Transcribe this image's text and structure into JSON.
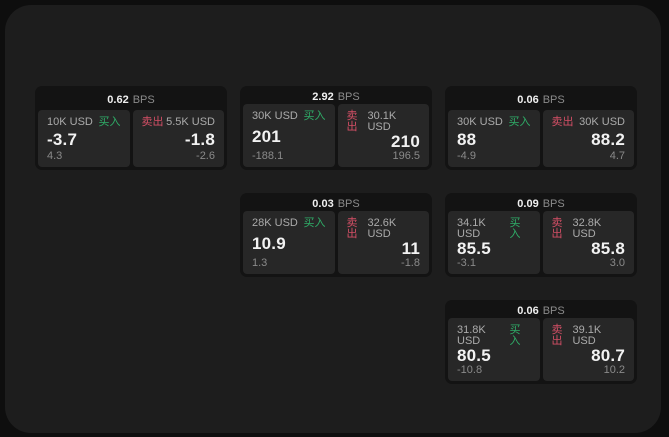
{
  "labels": {
    "bps_unit": "BPS",
    "buy": "买入",
    "sell": "卖出"
  },
  "colors": {
    "frame_bg": "#0e0e0e",
    "panel_bg": "#1d1d1d",
    "card_bg": "#131313",
    "tile_bg": "#272727",
    "buy_green": "#2fae68",
    "sell_red": "#d44f66",
    "value_white": "#f2f2f2",
    "label_gray": "#ababab",
    "muted_gray": "#8a8a8a"
  },
  "cards": [
    {
      "bps": "0.62",
      "buy": {
        "amount": "10K USD",
        "price": "-3.7",
        "delta": "4.3"
      },
      "sell": {
        "amount": "5.5K USD",
        "price": "-1.8",
        "delta": "-2.6"
      }
    },
    {
      "bps": "2.92",
      "buy": {
        "amount": "30K USD",
        "price": "201",
        "delta": "-188.1"
      },
      "sell": {
        "amount": "30.1K USD",
        "price": "210",
        "delta": "196.5"
      }
    },
    {
      "bps": "0.06",
      "buy": {
        "amount": "30K USD",
        "price": "88",
        "delta": "-4.9"
      },
      "sell": {
        "amount": "30K USD",
        "price": "88.2",
        "delta": "4.7"
      }
    },
    {
      "bps": "0.03",
      "buy": {
        "amount": "28K USD",
        "price": "10.9",
        "delta": "1.3"
      },
      "sell": {
        "amount": "32.6K USD",
        "price": "11",
        "delta": "-1.8"
      }
    },
    {
      "bps": "0.09",
      "buy": {
        "amount": "34.1K USD",
        "price": "85.5",
        "delta": "-3.1"
      },
      "sell": {
        "amount": "32.8K USD",
        "price": "85.8",
        "delta": "3.0"
      }
    },
    {
      "bps": "0.06",
      "buy": {
        "amount": "31.8K USD",
        "price": "80.5",
        "delta": "-10.8"
      },
      "sell": {
        "amount": "39.1K USD",
        "price": "80.7",
        "delta": "10.2"
      }
    }
  ]
}
